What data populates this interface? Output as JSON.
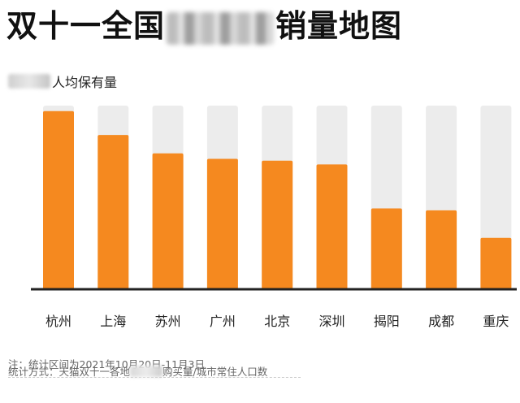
{
  "title": {
    "prefix": "双十一全国",
    "suffix": "销量地图"
  },
  "colors": {
    "bar": "#f5891f",
    "track": "#ececec",
    "axis": "#222222",
    "text": "#222222"
  },
  "chart_data": {
    "type": "bar",
    "ylabel": "人均保有量",
    "categories": [
      "杭州",
      "上海",
      "苏州",
      "广州",
      "北京",
      "深圳",
      "揭阳",
      "成都",
      "重庆"
    ],
    "values": [
      97,
      84,
      74,
      71,
      70,
      68,
      44,
      43,
      28
    ],
    "ylim": [
      0,
      100
    ],
    "grid": false
  },
  "notes": {
    "period": "注：统计区间为2021年10月20日-11月3日",
    "method_prefix": "统计方式：天猫双十一各地",
    "method_suffix": "购买量/城市常住人口数"
  }
}
